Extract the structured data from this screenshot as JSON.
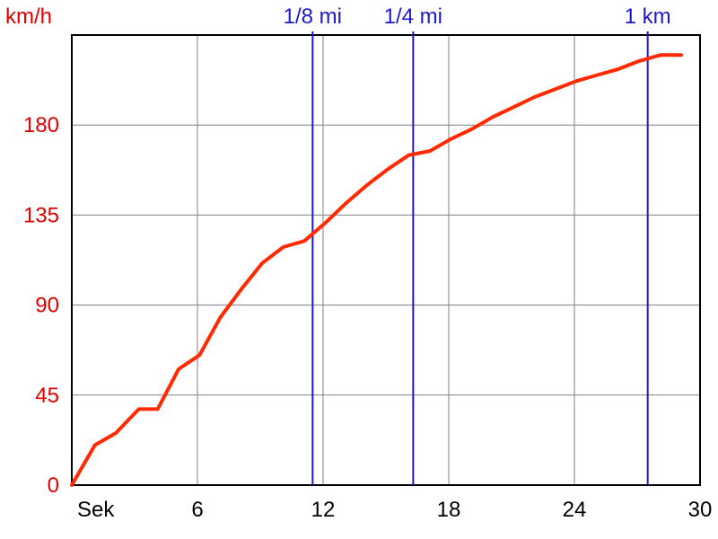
{
  "chart_data": {
    "type": "line",
    "y_unit": "km/h",
    "x_unit": "Sek",
    "xlim": [
      0,
      30
    ],
    "ylim": [
      0,
      225
    ],
    "x_ticks": [
      6,
      12,
      18,
      24,
      30
    ],
    "y_ticks": [
      0,
      45,
      90,
      135,
      180
    ],
    "grid": true,
    "series": [
      {
        "color": "#ff2a00",
        "x": [
          0,
          1.1,
          2.1,
          3.2,
          4.1,
          5.1,
          6.1,
          7.1,
          8.1,
          9.1,
          10.1,
          11.1,
          12.1,
          13.1,
          14.1,
          15.1,
          16.1,
          17.1,
          18.1,
          19.1,
          20.1,
          21.1,
          22.1,
          23.1,
          24.1,
          25.1,
          26.1,
          27.1,
          28.1,
          29.1
        ],
        "y": [
          0,
          20,
          26,
          38,
          38,
          58,
          65,
          84,
          98,
          111,
          119,
          122,
          131,
          141,
          150,
          158,
          165,
          167,
          173,
          178,
          184,
          189,
          194,
          198,
          202,
          205,
          208,
          212,
          215,
          215
        ]
      }
    ],
    "markers": [
      {
        "label": "1/8 mi",
        "x": 11.5,
        "color": "#1a1acc"
      },
      {
        "label": "1/4 mi",
        "x": 16.3,
        "color": "#1a1acc"
      },
      {
        "label": "1 km",
        "x": 27.5,
        "color": "#1a1acc"
      }
    ]
  },
  "colors": {
    "axis_labels_y": "#e00000",
    "axis_labels_x": "#000000",
    "grid": "#808080",
    "line": "#ff2a00",
    "markers": "#1a1acc"
  }
}
